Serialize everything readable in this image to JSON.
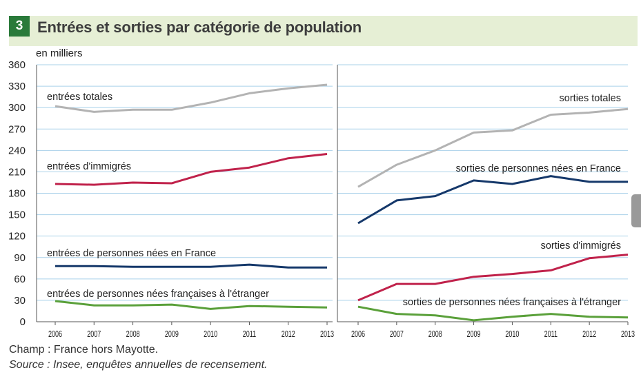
{
  "figure": {
    "number": "3",
    "title": "Entrées et sorties par catégorie de population"
  },
  "unit_label": "en milliers",
  "notes": {
    "champ": "Champ : France hors Mayotte.",
    "source": "Source : Insee, enquêtes annuelles de recensement."
  },
  "colors": {
    "header_bg": "#e6efd5",
    "badge": "#2a7a3a",
    "grid": "#a9d1ea",
    "gray": "#b3b3b3",
    "red": "#c0224b",
    "navy": "#15386a",
    "green": "#5aa03a"
  },
  "chart_data": [
    {
      "type": "line",
      "panel": "left",
      "x": [
        "2006",
        "2007",
        "2008",
        "2009",
        "2010",
        "2011",
        "2012",
        "2013"
      ],
      "ylim": [
        0,
        360
      ],
      "yticks": [
        "0",
        "30",
        "60",
        "90",
        "120",
        "150",
        "180",
        "210",
        "240",
        "270",
        "300",
        "330",
        "360"
      ],
      "grid": true,
      "series": [
        {
          "name": "entrées totales",
          "color": "gray",
          "values": [
            302,
            294,
            297,
            297,
            307,
            320,
            327,
            332
          ]
        },
        {
          "name": "entrées d'immigrés",
          "color": "red",
          "values": [
            193,
            192,
            195,
            194,
            210,
            216,
            229,
            235
          ]
        },
        {
          "name": "entrées de personnes nées en France",
          "color": "navy",
          "values": [
            78,
            78,
            77,
            77,
            77,
            80,
            76,
            76
          ]
        },
        {
          "name": "entrées de personnes nées françaises à l'étranger",
          "color": "green",
          "values": [
            29,
            23,
            23,
            24,
            18,
            22,
            21,
            20
          ]
        }
      ]
    },
    {
      "type": "line",
      "panel": "right",
      "x": [
        "2006",
        "2007",
        "2008",
        "2009",
        "2010",
        "2011",
        "2012",
        "2013"
      ],
      "ylim": [
        0,
        360
      ],
      "grid": true,
      "series": [
        {
          "name": "sorties totales",
          "color": "gray",
          "values": [
            189,
            220,
            240,
            265,
            268,
            290,
            293,
            298
          ]
        },
        {
          "name": "sorties de personnes nées en France",
          "color": "navy",
          "values": [
            138,
            170,
            176,
            198,
            193,
            204,
            196,
            196
          ]
        },
        {
          "name": "sorties d'immigrés",
          "color": "red",
          "values": [
            30,
            53,
            53,
            63,
            67,
            72,
            89,
            94
          ]
        },
        {
          "name": "sorties de personnes nées françaises à l'étranger",
          "color": "green",
          "values": [
            21,
            11,
            9,
            2,
            7,
            11,
            7,
            6
          ]
        }
      ]
    }
  ]
}
